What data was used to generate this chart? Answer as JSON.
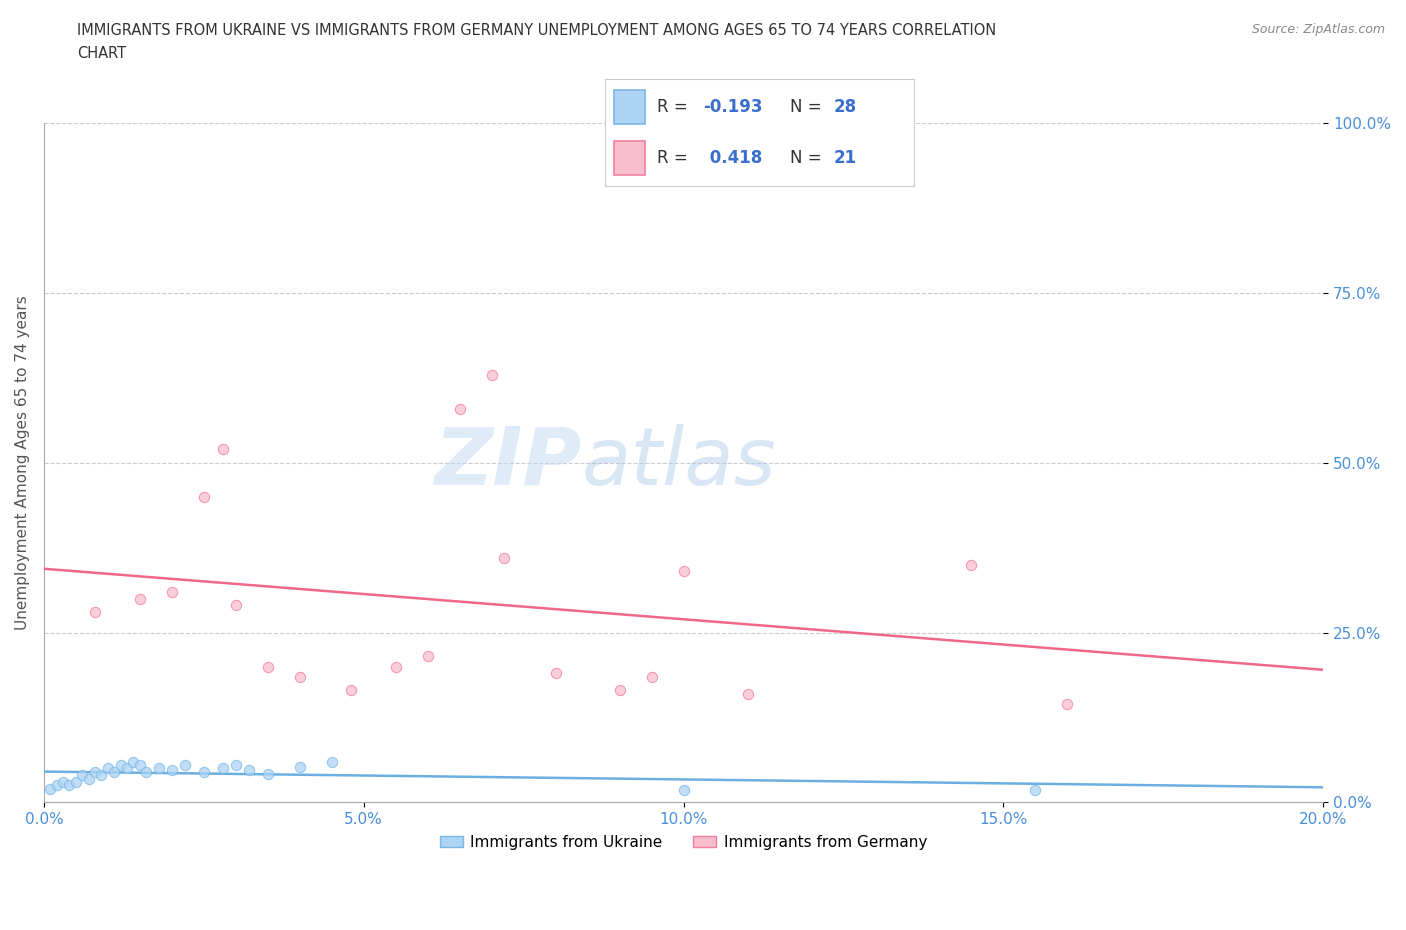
{
  "title_line1": "IMMIGRANTS FROM UKRAINE VS IMMIGRANTS FROM GERMANY UNEMPLOYMENT AMONG AGES 65 TO 74 YEARS CORRELATION",
  "title_line2": "CHART",
  "source": "Source: ZipAtlas.com",
  "ylabel": "Unemployment Among Ages 65 to 74 years",
  "xlim": [
    0.0,
    0.2
  ],
  "ylim": [
    0.0,
    1.0
  ],
  "xticks": [
    0.0,
    0.05,
    0.1,
    0.15,
    0.2
  ],
  "xtick_labels": [
    "0.0%",
    "5.0%",
    "10.0%",
    "15.0%",
    "20.0%"
  ],
  "yticks": [
    0.0,
    0.25,
    0.5,
    0.75,
    1.0
  ],
  "ytick_labels": [
    "0.0%",
    "25.0%",
    "50.0%",
    "75.0%",
    "100.0%"
  ],
  "ukraine_color": "#aed4f5",
  "germany_color": "#f9bece",
  "ukraine_edge_color": "#7ab8e8",
  "germany_edge_color": "#f080a0",
  "ukraine_line_color": "#6aafe0",
  "germany_line_color": "#f06888",
  "R_ukraine": -0.193,
  "N_ukraine": 28,
  "R_germany": 0.418,
  "N_germany": 21,
  "ukraine_x": [
    0.001,
    0.002,
    0.003,
    0.004,
    0.005,
    0.006,
    0.007,
    0.008,
    0.009,
    0.01,
    0.011,
    0.012,
    0.013,
    0.014,
    0.015,
    0.016,
    0.018,
    0.02,
    0.022,
    0.025,
    0.028,
    0.03,
    0.032,
    0.035,
    0.04,
    0.045,
    0.1,
    0.155
  ],
  "ukraine_y": [
    0.02,
    0.025,
    0.03,
    0.025,
    0.03,
    0.04,
    0.035,
    0.045,
    0.04,
    0.05,
    0.045,
    0.055,
    0.05,
    0.06,
    0.055,
    0.045,
    0.05,
    0.048,
    0.055,
    0.045,
    0.05,
    0.055,
    0.048,
    0.042,
    0.052,
    0.06,
    0.018,
    0.018
  ],
  "germany_x": [
    0.008,
    0.015,
    0.02,
    0.025,
    0.028,
    0.03,
    0.035,
    0.04,
    0.048,
    0.055,
    0.06,
    0.065,
    0.07,
    0.072,
    0.08,
    0.09,
    0.095,
    0.1,
    0.11,
    0.145,
    0.16
  ],
  "germany_y": [
    0.28,
    0.3,
    0.31,
    0.45,
    0.52,
    0.29,
    0.2,
    0.185,
    0.165,
    0.2,
    0.215,
    0.58,
    0.63,
    0.36,
    0.19,
    0.165,
    0.185,
    0.34,
    0.16,
    0.35,
    0.145
  ],
  "watermark_zip": "ZIP",
  "watermark_atlas": "atlas",
  "background_color": "#ffffff",
  "grid_color": "#cccccc",
  "tick_color": "#4a90d9",
  "legend_label_ukraine": "Immigrants from Ukraine",
  "legend_label_germany": "Immigrants from Germany"
}
